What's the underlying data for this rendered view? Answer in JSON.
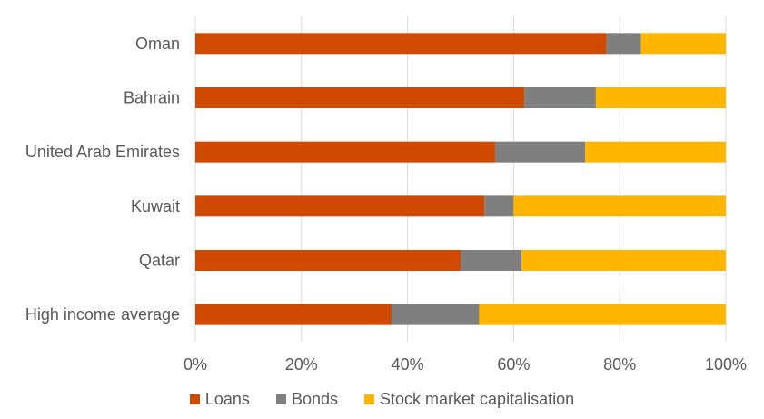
{
  "colors": {
    "Loans": "#d04a02",
    "Bonds": "#7f7f7f",
    "Stock market capitalisation": "#ffb600",
    "gridline": "#d9d9d9",
    "text": "#595959"
  },
  "chart_data": {
    "type": "bar",
    "orientation": "horizontal",
    "stacked": "percent",
    "categories": [
      "Oman",
      "Bahrain",
      "United Arab Emirates",
      "Kuwait",
      "Qatar",
      "High income average"
    ],
    "series": [
      {
        "name": "Loans",
        "values": [
          77.5,
          62,
          56.5,
          54.5,
          50,
          37
        ]
      },
      {
        "name": "Bonds",
        "values": [
          6.5,
          13.5,
          17,
          5.5,
          11.5,
          16.5
        ]
      },
      {
        "name": "Stock market capitalisation",
        "values": [
          16,
          24.5,
          26.5,
          40,
          38.5,
          46.5
        ]
      }
    ],
    "xlim": [
      0,
      100
    ],
    "x_ticks": [
      "0%",
      "20%",
      "40%",
      "60%",
      "80%",
      "100%"
    ],
    "x_tick_values": [
      0,
      20,
      40,
      60,
      80,
      100
    ],
    "grid": "vertical",
    "legend_position": "bottom"
  }
}
